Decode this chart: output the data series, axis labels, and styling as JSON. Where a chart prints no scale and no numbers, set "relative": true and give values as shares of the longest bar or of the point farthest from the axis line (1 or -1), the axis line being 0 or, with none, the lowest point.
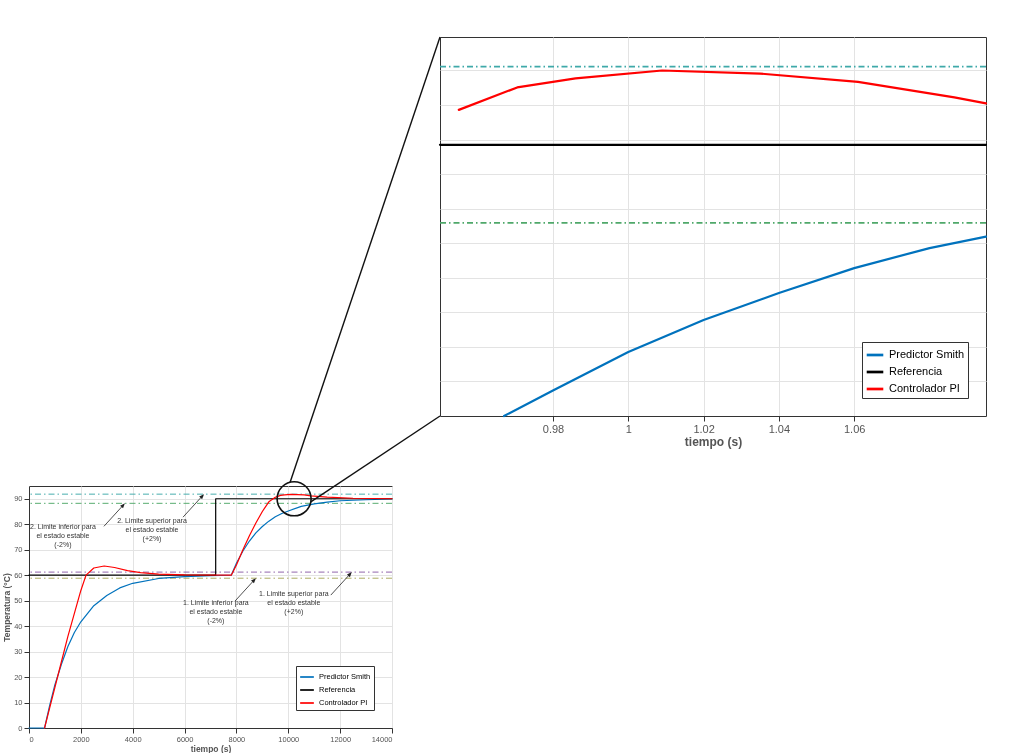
{
  "chart_data": [
    {
      "type": "line",
      "xlabel": "tiempo (s)",
      "ylabel": "Temperatura (°C)",
      "xlim": [
        0,
        14000
      ],
      "xticks": [
        0,
        2000,
        4000,
        6000,
        8000,
        10000,
        12000,
        14000
      ],
      "ylim": [
        0,
        95
      ],
      "yticks": [
        0,
        10,
        20,
        30,
        40,
        50,
        60,
        70,
        80,
        90
      ],
      "grid": true,
      "legend": "bottom right",
      "series": [
        {
          "name": "Predictor Smith",
          "color": "#0072bd",
          "x": [
            0,
            600,
            800,
            1000,
            1250,
            1500,
            1750,
            2000,
            2500,
            3000,
            3500,
            4000,
            5000,
            6000,
            7000,
            7800,
            8000,
            8250,
            8500,
            8750,
            9000,
            9250,
            9500,
            9750,
            10000,
            10500,
            11000,
            11500,
            12000,
            13000,
            14000
          ],
          "values": [
            0,
            0,
            9,
            17,
            25,
            32,
            37.5,
            41.7,
            48,
            52,
            55,
            56.8,
            58.7,
            59.4,
            59.8,
            60,
            64.7,
            69.5,
            73.4,
            76.6,
            79.1,
            81.2,
            82.9,
            84.2,
            85.2,
            87,
            88,
            88.7,
            89.2,
            89.6,
            89.9
          ]
        },
        {
          "name": "Referencia",
          "color": "#000000",
          "x": [
            0,
            7200,
            7200,
            14000
          ],
          "values": [
            60,
            60,
            90,
            90
          ]
        },
        {
          "name": "Controlador PI",
          "color": "#ff0000",
          "x": [
            600,
            800,
            1000,
            1250,
            1500,
            1750,
            2000,
            2200,
            2500,
            2900,
            3300,
            3800,
            4300,
            5000,
            6000,
            7800,
            8000,
            8250,
            8500,
            8750,
            9000,
            9250,
            9500,
            9700,
            9860,
            10090,
            10350,
            10610,
            10870,
            11500,
            12500,
            14000
          ],
          "values": [
            0,
            8,
            16,
            26,
            36,
            45,
            54,
            60,
            62.8,
            63.6,
            63,
            61.8,
            61,
            60.4,
            60.1,
            60,
            64,
            70,
            75.5,
            80.5,
            85,
            88.8,
            90.6,
            91.3,
            91.5,
            91.7,
            91.6,
            91.5,
            91.1,
            90.6,
            90.2,
            90
          ]
        }
      ],
      "ref_lines": [
        {
          "axis": "y",
          "value": 91.8,
          "color": "#3fa9a9",
          "line_style": "dashed"
        },
        {
          "axis": "y",
          "value": 88.2,
          "color": "#4fa86a",
          "line_style": "dashed"
        },
        {
          "axis": "y",
          "value": 61.2,
          "color": "#8c5ea8",
          "line_style": "dashed"
        },
        {
          "axis": "y",
          "value": 58.8,
          "color": "#a8a85a",
          "line_style": "dashed"
        }
      ],
      "annotations": [
        {
          "text": "2. Limite inferior para\nel estado estable\n(-2%)",
          "x": 3700,
          "y": 88.2
        },
        {
          "text": "2. Limite superior para\nel estado estable\n(+2%)",
          "x": 6750,
          "y": 91.8
        },
        {
          "text": "1. Limite inferior para\nel estado estable\n(-2%)",
          "x": 8750,
          "y": 58.8
        },
        {
          "text": "1. Limite superior para\nel estado estable\n(+2%)",
          "x": 12450,
          "y": 61.2
        }
      ]
    },
    {
      "type": "line",
      "xlabel": "tiempo (s)",
      "xlim": [
        0.95,
        1.095
      ],
      "xticks": [
        0.98,
        1,
        1.02,
        1.04,
        1.06
      ],
      "relative": true,
      "grid": true,
      "legend": "bottom right",
      "series": [
        {
          "name": "Predictor Smith",
          "color": "#0072bd",
          "x": [
            0.967,
            0.98,
            1.0,
            1.02,
            1.04,
            1.06,
            1.08,
            1.095
          ],
          "values": [
            0,
            0.074,
            0.185,
            0.278,
            0.356,
            0.428,
            0.486,
            0.519
          ]
        },
        {
          "name": "Referencia",
          "color": "#000000",
          "x": [
            0.95,
            1.095
          ],
          "values": [
            0.785,
            0.785
          ]
        },
        {
          "name": "Controlador PI",
          "color": "#ff0000",
          "x": [
            0.955,
            0.9705,
            0.986,
            1.009,
            1.035,
            1.061,
            1.0866,
            1.095
          ],
          "values": [
            0.886,
            0.951,
            0.977,
            1,
            0.991,
            0.967,
            0.922,
            0.905
          ]
        }
      ],
      "ref_lines": [
        {
          "axis": "y",
          "value": 1.011,
          "color": "#3fa9a9",
          "line_style": "dashed"
        },
        {
          "axis": "y",
          "value": 0.559,
          "color": "#4fa86a",
          "line_style": "dashed"
        }
      ]
    }
  ]
}
